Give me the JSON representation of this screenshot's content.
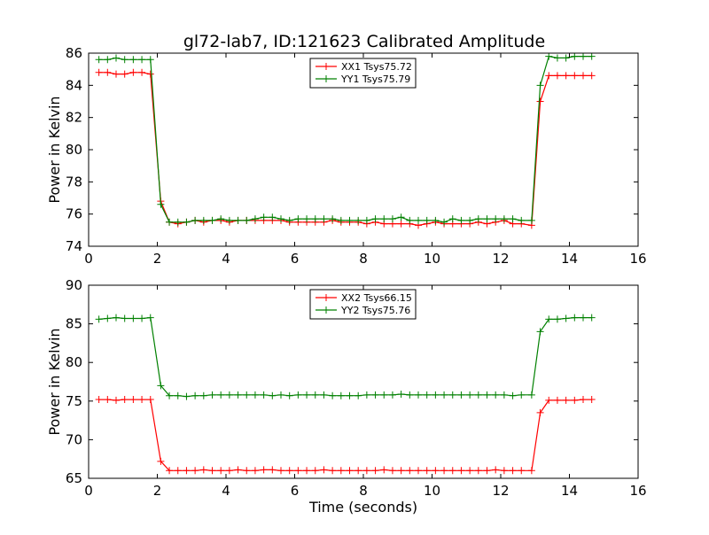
{
  "title": "gl72-lab7, ID:121623 Calibrated Amplitude",
  "chart_data": [
    {
      "type": "line",
      "title": "gl72-lab7, ID:121623 Calibrated Amplitude",
      "xlabel": "",
      "ylabel": "Power in Kelvin",
      "xlim": [
        0,
        16
      ],
      "ylim": [
        74,
        86
      ],
      "xticks": [
        "0",
        "2",
        "4",
        "6",
        "8",
        "10",
        "12",
        "14",
        "16"
      ],
      "yticks": [
        "74",
        "76",
        "78",
        "80",
        "82",
        "84",
        "86"
      ],
      "grid": false,
      "legend_position": "top-center",
      "x": [
        0.3,
        0.55,
        0.8,
        1.05,
        1.3,
        1.55,
        1.8,
        2.1,
        2.35,
        2.6,
        2.85,
        3.1,
        3.35,
        3.6,
        3.85,
        4.1,
        4.35,
        4.6,
        4.85,
        5.1,
        5.35,
        5.6,
        5.85,
        6.1,
        6.35,
        6.6,
        6.85,
        7.1,
        7.35,
        7.6,
        7.85,
        8.1,
        8.35,
        8.6,
        8.85,
        9.1,
        9.35,
        9.6,
        9.85,
        10.1,
        10.35,
        10.6,
        10.85,
        11.1,
        11.35,
        11.6,
        11.85,
        12.1,
        12.35,
        12.6,
        12.9,
        13.15,
        13.4,
        13.65,
        13.9,
        14.15,
        14.4,
        14.65
      ],
      "series": [
        {
          "name": "XX1 Tsys75.72",
          "color": "#ff0000",
          "values": [
            84.8,
            84.8,
            84.7,
            84.7,
            84.8,
            84.8,
            84.7,
            76.8,
            75.5,
            75.4,
            75.5,
            75.6,
            75.5,
            75.6,
            75.6,
            75.5,
            75.6,
            75.6,
            75.6,
            75.6,
            75.6,
            75.6,
            75.5,
            75.5,
            75.5,
            75.5,
            75.5,
            75.6,
            75.5,
            75.5,
            75.5,
            75.4,
            75.5,
            75.4,
            75.4,
            75.4,
            75.4,
            75.3,
            75.4,
            75.5,
            75.4,
            75.4,
            75.4,
            75.4,
            75.5,
            75.4,
            75.5,
            75.6,
            75.4,
            75.4,
            75.3,
            83.0,
            84.6,
            84.6,
            84.6,
            84.6,
            84.6,
            84.6
          ]
        },
        {
          "name": "YY1 Tsys75.79",
          "color": "#008000",
          "values": [
            85.6,
            85.6,
            85.7,
            85.6,
            85.6,
            85.6,
            85.6,
            76.6,
            75.5,
            75.5,
            75.5,
            75.6,
            75.6,
            75.6,
            75.7,
            75.6,
            75.6,
            75.6,
            75.7,
            75.8,
            75.8,
            75.7,
            75.6,
            75.7,
            75.7,
            75.7,
            75.7,
            75.7,
            75.6,
            75.6,
            75.6,
            75.6,
            75.7,
            75.7,
            75.7,
            75.8,
            75.6,
            75.6,
            75.6,
            75.6,
            75.5,
            75.7,
            75.6,
            75.6,
            75.7,
            75.7,
            75.7,
            75.7,
            75.7,
            75.6,
            75.6,
            84.0,
            85.8,
            85.7,
            85.7,
            85.8,
            85.8,
            85.8
          ]
        }
      ]
    },
    {
      "type": "line",
      "title": "",
      "xlabel": "Time (seconds)",
      "ylabel": "Power in Kelvin",
      "xlim": [
        0,
        16
      ],
      "ylim": [
        65,
        90
      ],
      "xticks": [
        "0",
        "2",
        "4",
        "6",
        "8",
        "10",
        "12",
        "14",
        "16"
      ],
      "yticks": [
        "65",
        "70",
        "75",
        "80",
        "85",
        "90"
      ],
      "grid": false,
      "legend_position": "top-center",
      "x": [
        0.3,
        0.55,
        0.8,
        1.05,
        1.3,
        1.55,
        1.8,
        2.1,
        2.35,
        2.6,
        2.85,
        3.1,
        3.35,
        3.6,
        3.85,
        4.1,
        4.35,
        4.6,
        4.85,
        5.1,
        5.35,
        5.6,
        5.85,
        6.1,
        6.35,
        6.6,
        6.85,
        7.1,
        7.35,
        7.6,
        7.85,
        8.1,
        8.35,
        8.6,
        8.85,
        9.1,
        9.35,
        9.6,
        9.85,
        10.1,
        10.35,
        10.6,
        10.85,
        11.1,
        11.35,
        11.6,
        11.85,
        12.1,
        12.35,
        12.6,
        12.9,
        13.15,
        13.4,
        13.65,
        13.9,
        14.15,
        14.4,
        14.65
      ],
      "series": [
        {
          "name": "XX2 Tsys66.15",
          "color": "#ff0000",
          "values": [
            75.2,
            75.2,
            75.1,
            75.2,
            75.2,
            75.2,
            75.2,
            67.2,
            66.0,
            66.0,
            66.0,
            66.0,
            66.1,
            66.0,
            66.0,
            66.0,
            66.1,
            66.0,
            66.0,
            66.1,
            66.1,
            66.0,
            66.0,
            66.0,
            66.0,
            66.0,
            66.1,
            66.0,
            66.0,
            66.0,
            66.0,
            66.0,
            66.0,
            66.1,
            66.0,
            66.0,
            66.0,
            66.0,
            66.0,
            66.0,
            66.0,
            66.0,
            66.0,
            66.0,
            66.0,
            66.0,
            66.1,
            66.0,
            66.0,
            66.0,
            66.0,
            73.5,
            75.1,
            75.1,
            75.1,
            75.1,
            75.2,
            75.2
          ]
        },
        {
          "name": "YY2 Tsys75.76",
          "color": "#008000",
          "values": [
            85.6,
            85.7,
            85.8,
            85.7,
            85.7,
            85.7,
            85.8,
            77.0,
            75.7,
            75.7,
            75.6,
            75.7,
            75.7,
            75.8,
            75.8,
            75.8,
            75.8,
            75.8,
            75.8,
            75.8,
            75.7,
            75.8,
            75.7,
            75.8,
            75.8,
            75.8,
            75.8,
            75.7,
            75.7,
            75.7,
            75.7,
            75.8,
            75.8,
            75.8,
            75.8,
            75.9,
            75.8,
            75.8,
            75.8,
            75.8,
            75.8,
            75.8,
            75.8,
            75.8,
            75.8,
            75.8,
            75.8,
            75.8,
            75.7,
            75.8,
            75.8,
            84.0,
            85.6,
            85.6,
            85.7,
            85.8,
            85.8,
            85.8
          ]
        }
      ]
    }
  ]
}
